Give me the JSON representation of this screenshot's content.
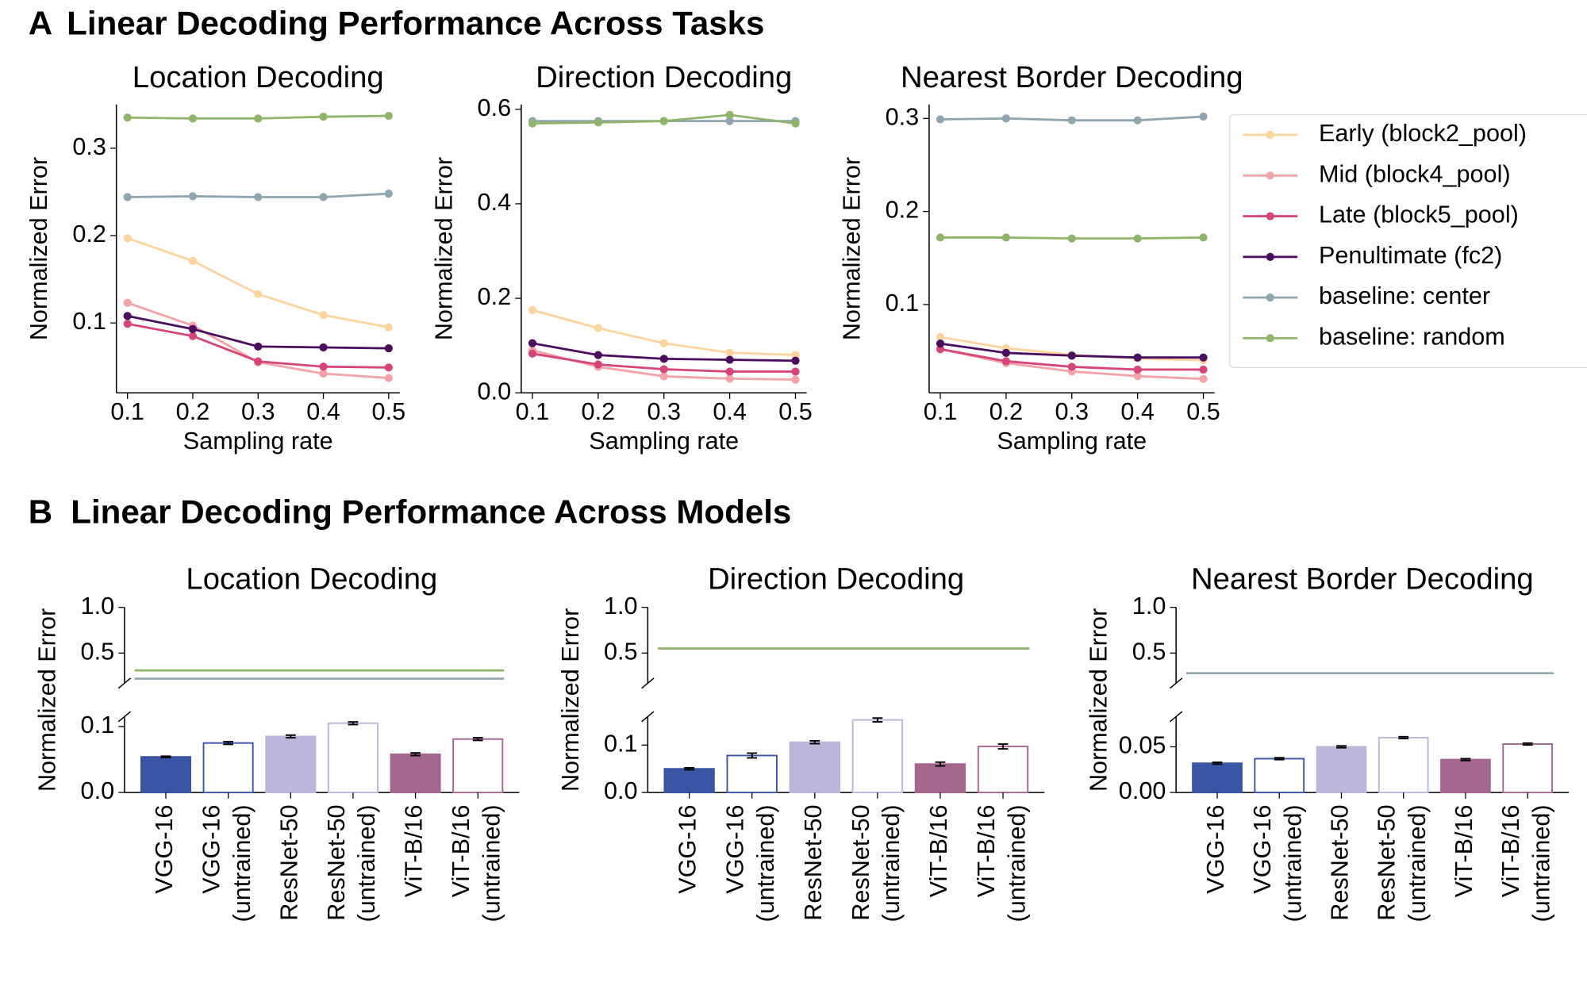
{
  "figure": {
    "panel_a": {
      "label": "A",
      "title": "Linear Decoding Performance Across Tasks"
    },
    "panel_b": {
      "label": "B",
      "title": "Linear Decoding Performance Across Models"
    },
    "legend": {
      "position": "right",
      "entries": [
        {
          "name": "Early (block2_pool)",
          "color": "#fdd49e"
        },
        {
          "name": "Mid (block4_pool)",
          "color": "#f4a3a8"
        },
        {
          "name": "Late (block5_pool)",
          "color": "#d6457a"
        },
        {
          "name": "Penultimate (fc2)",
          "color": "#4b0d5e"
        },
        {
          "name": "baseline: center",
          "color": "#8fa5b0"
        },
        {
          "name": "baseline: random",
          "color": "#8fb56b"
        }
      ]
    }
  },
  "chart_data": [
    {
      "type": "line",
      "title": "Location Decoding",
      "x_label": "Sampling rate",
      "y_label": "Normalized Error",
      "x": [
        0.1,
        0.2,
        0.3,
        0.4,
        0.5
      ],
      "xlim": [
        0.083,
        0.517
      ],
      "xticks": [
        0.1,
        0.2,
        0.3,
        0.4,
        0.5
      ],
      "ylim": [
        0.02,
        0.35
      ],
      "yticks": [
        0.1,
        0.2,
        0.3
      ],
      "series": [
        {
          "values": [
            0.197,
            0.171,
            0.133,
            0.109,
            0.095
          ]
        },
        {
          "values": [
            0.123,
            0.097,
            0.055,
            0.042,
            0.037
          ]
        },
        {
          "values": [
            0.099,
            0.085,
            0.056,
            0.05,
            0.049
          ]
        },
        {
          "values": [
            0.108,
            0.093,
            0.073,
            0.072,
            0.071
          ]
        },
        {
          "values": [
            0.244,
            0.245,
            0.244,
            0.244,
            0.248
          ]
        },
        {
          "values": [
            0.335,
            0.334,
            0.334,
            0.336,
            0.337
          ]
        }
      ]
    },
    {
      "type": "line",
      "title": "Direction Decoding",
      "x_label": "Sampling rate",
      "y_label": "Normalized Error",
      "x": [
        0.1,
        0.2,
        0.3,
        0.4,
        0.5
      ],
      "xlim": [
        0.083,
        0.517
      ],
      "xticks": [
        0.1,
        0.2,
        0.3,
        0.4,
        0.5
      ],
      "ylim": [
        0,
        0.61
      ],
      "yticks": [
        {
          "value": 0,
          "label": "0.0"
        },
        0.2,
        0.4,
        0.6
      ],
      "series": [
        {
          "values": [
            0.175,
            0.137,
            0.105,
            0.085,
            0.08
          ]
        },
        {
          "values": [
            0.09,
            0.055,
            0.035,
            0.03,
            0.028
          ]
        },
        {
          "values": [
            0.083,
            0.06,
            0.05,
            0.045,
            0.045
          ]
        },
        {
          "values": [
            0.105,
            0.08,
            0.072,
            0.07,
            0.068
          ]
        },
        {
          "values": [
            0.575,
            0.575,
            0.575,
            0.575,
            0.575
          ]
        },
        {
          "values": [
            0.57,
            0.572,
            0.575,
            0.588,
            0.57
          ]
        }
      ]
    },
    {
      "type": "line",
      "title": "Nearest Border Decoding",
      "x_label": "Sampling rate",
      "y_label": "Normalized Error",
      "x": [
        0.1,
        0.2,
        0.3,
        0.4,
        0.5
      ],
      "xlim": [
        0.083,
        0.517
      ],
      "xticks": [
        0.1,
        0.2,
        0.3,
        0.4,
        0.5
      ],
      "ylim": [
        0.005,
        0.315
      ],
      "yticks": [
        0.1,
        0.2,
        0.3
      ],
      "series": [
        {
          "values": [
            0.065,
            0.053,
            0.046,
            0.042,
            0.04
          ]
        },
        {
          "values": [
            0.052,
            0.037,
            0.028,
            0.023,
            0.02
          ]
        },
        {
          "values": [
            0.052,
            0.039,
            0.033,
            0.03,
            0.03
          ]
        },
        {
          "values": [
            0.058,
            0.048,
            0.045,
            0.043,
            0.043
          ]
        },
        {
          "values": [
            0.299,
            0.3,
            0.298,
            0.298,
            0.302
          ]
        },
        {
          "values": [
            0.172,
            0.172,
            0.171,
            0.171,
            0.172
          ]
        }
      ]
    },
    {
      "type": "broken_bar",
      "title": "Location Decoding",
      "y_label": "Normalized Error",
      "categories": [
        [
          "VGG-16"
        ],
        [
          "VGG-16",
          "(untrained)"
        ],
        [
          "ResNet-50"
        ],
        [
          "ResNet-50",
          "(untrained)"
        ],
        [
          "ViT-B/16"
        ],
        [
          "ViT-B/16",
          "(untrained)"
        ]
      ],
      "values": [
        0.054,
        0.075,
        0.085,
        0.105,
        0.058,
        0.081
      ],
      "errors": [
        0.001,
        0.002,
        0.002,
        0.002,
        0.002,
        0.002
      ],
      "colors": [
        "#3a55a4",
        "#ffffff",
        "#bcb6da",
        "#ffffff",
        "#a5668f",
        "#ffffff"
      ],
      "edge_colors": [
        "#3a55a4",
        "#3a55a4",
        "#bcb6da",
        "#bcb6da",
        "#a5668f",
        "#a5668f"
      ],
      "tick_label_colors": [
        "#000000",
        "#999999",
        "#000000",
        "#999999",
        "#000000",
        "#999999"
      ],
      "ylim": [
        0,
        0.115
      ],
      "yticks": [
        {
          "value": 0,
          "label": "0.0"
        },
        0.1
      ],
      "ylim_upper": [
        0.17,
        1.0
      ],
      "yticks_upper": [
        0.5,
        {
          "value": 1,
          "label": "1.0"
        }
      ],
      "reference_lines": [
        {
          "value": 0.31,
          "color": "#8fb56b"
        },
        {
          "value": 0.22,
          "color": "#8fa5b0"
        }
      ]
    },
    {
      "type": "broken_bar",
      "title": "Direction Decoding",
      "y_label": "Normalized Error",
      "categories": [
        [
          "VGG-16"
        ],
        [
          "VGG-16",
          "(untrained)"
        ],
        [
          "ResNet-50"
        ],
        [
          "ResNet-50",
          "(untrained)"
        ],
        [
          "ViT-B/16"
        ],
        [
          "ViT-B/16",
          "(untrained)"
        ]
      ],
      "values": [
        0.05,
        0.078,
        0.106,
        0.153,
        0.06,
        0.097
      ],
      "errors": [
        0.002,
        0.005,
        0.003,
        0.004,
        0.004,
        0.005
      ],
      "colors": [
        "#3a55a4",
        "#ffffff",
        "#bcb6da",
        "#ffffff",
        "#a5668f",
        "#ffffff"
      ],
      "edge_colors": [
        "#3a55a4",
        "#3a55a4",
        "#bcb6da",
        "#bcb6da",
        "#a5668f",
        "#a5668f"
      ],
      "tick_label_colors": [
        "#000000",
        "#999999",
        "#000000",
        "#999999",
        "#000000",
        "#999999"
      ],
      "ylim": [
        0,
        0.16
      ],
      "yticks": [
        {
          "value": 0,
          "label": "0.0"
        },
        0.1
      ],
      "ylim_upper": [
        0.17,
        1.0
      ],
      "yticks_upper": [
        0.5,
        {
          "value": 1,
          "label": "1.0"
        }
      ],
      "reference_lines": [
        {
          "value": 0.55,
          "color": "#8fa5b0"
        },
        {
          "value": 0.55,
          "color": "#8fb56b"
        }
      ]
    },
    {
      "type": "broken_bar",
      "title": "Nearest Border Decoding",
      "y_label": "Normalized Error",
      "categories": [
        [
          "VGG-16"
        ],
        [
          "VGG-16",
          "(untrained)"
        ],
        [
          "ResNet-50"
        ],
        [
          "ResNet-50",
          "(untrained)"
        ],
        [
          "ViT-B/16"
        ],
        [
          "ViT-B/16",
          "(untrained)"
        ]
      ],
      "values": [
        0.032,
        0.037,
        0.05,
        0.06,
        0.036,
        0.053
      ],
      "errors": [
        0.001,
        0.001,
        0.001,
        0.001,
        0.001,
        0.001
      ],
      "colors": [
        "#3a55a4",
        "#ffffff",
        "#bcb6da",
        "#ffffff",
        "#a5668f",
        "#ffffff"
      ],
      "edge_colors": [
        "#3a55a4",
        "#3a55a4",
        "#bcb6da",
        "#bcb6da",
        "#a5668f",
        "#a5668f"
      ],
      "tick_label_colors": [
        "#000000",
        "#999999",
        "#000000",
        "#999999",
        "#000000",
        "#999999"
      ],
      "ylim": [
        0,
        0.083
      ],
      "yticks": [
        {
          "value": 0,
          "label": "0.00"
        },
        {
          "value": 0.05,
          "label": "0.05"
        }
      ],
      "ylim_upper": [
        0.17,
        1.0
      ],
      "yticks_upper": [
        0.5,
        {
          "value": 1,
          "label": "1.0"
        }
      ],
      "reference_lines": [
        {
          "value": 0.28,
          "color": "#8fa5b0"
        }
      ]
    }
  ]
}
